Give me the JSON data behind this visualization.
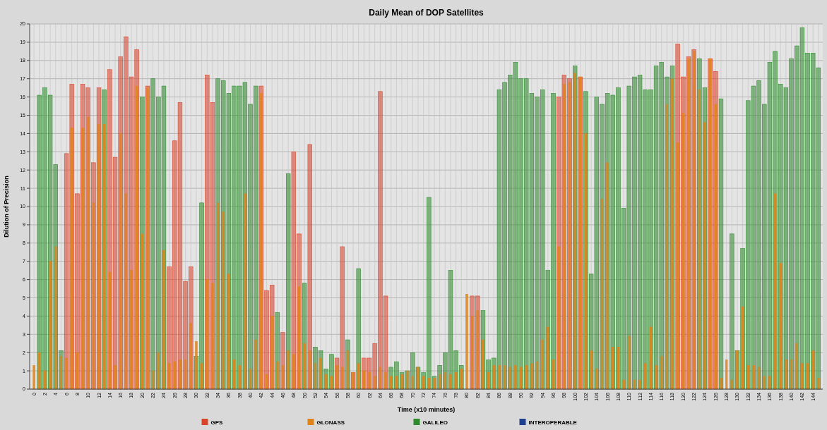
{
  "chart_data": {
    "type": "bar",
    "title": "Daily Mean of DOP Satellites",
    "xlabel": "Time (x10 minutes)",
    "ylabel": "Dilution of Precision",
    "categories": [
      "0",
      null,
      "2",
      null,
      "4",
      null,
      "6",
      null,
      "8",
      null,
      "10",
      null,
      "12",
      null,
      "14",
      null,
      "16",
      null,
      "18",
      null,
      "20",
      null,
      "22",
      null,
      "24",
      null,
      "26",
      null,
      "28",
      null,
      "30",
      null,
      "32",
      null,
      "34",
      null,
      "36",
      null,
      "38",
      null,
      "40",
      null,
      "42",
      null,
      "44",
      null,
      "46",
      null,
      "48",
      null,
      "50",
      null,
      "52",
      null,
      "54",
      null,
      "56",
      null,
      "58",
      null,
      "60",
      null,
      "62",
      null,
      "64",
      null,
      "66",
      null,
      "68",
      null,
      "70",
      null,
      "72",
      null,
      "74",
      null,
      "76",
      null,
      "78",
      null,
      "80",
      null,
      "82",
      null,
      "84",
      null,
      "86",
      null,
      "88",
      null,
      "90",
      null,
      "92",
      null,
      "94",
      null,
      "96",
      null,
      "98",
      null,
      "100",
      null,
      "102",
      null,
      "104",
      null,
      "106",
      null,
      "108",
      null,
      "110",
      null,
      "112",
      null,
      "114",
      null,
      "116",
      null,
      "118",
      null,
      "120",
      null,
      "122",
      null,
      "124",
      null,
      "126",
      null,
      "128",
      null,
      "130",
      null,
      "132",
      null,
      "134",
      null,
      "136",
      null,
      "138",
      null,
      "140",
      null,
      "142",
      null,
      "144",
      null
    ],
    "series": [
      {
        "name": "GPS",
        "color": "#d9442b",
        "values": [
          null,
          null,
          null,
          null,
          null,
          null,
          12.9,
          16.7,
          10.7,
          16.7,
          16.5,
          12.4,
          16.5,
          null,
          17.5,
          12.7,
          18.2,
          19.3,
          17.1,
          18.6,
          null,
          16.6,
          null,
          null,
          null,
          6.7,
          13.6,
          15.7,
          5.9,
          6.7,
          null,
          null,
          17.2,
          15.7,
          null,
          null,
          null,
          null,
          null,
          null,
          null,
          null,
          16.6,
          5.4,
          5.7,
          null,
          3.1,
          null,
          13.0,
          8.5,
          null,
          13.4,
          null,
          null,
          null,
          null,
          1.7,
          7.8,
          null,
          0.9,
          null,
          1.7,
          1.7,
          2.5,
          16.3,
          5.1,
          null,
          null,
          null,
          null,
          null,
          null,
          null,
          null,
          null,
          null,
          null,
          null,
          null,
          null,
          null,
          5.1,
          5.1,
          null,
          null,
          null,
          null,
          null,
          null,
          null,
          null,
          null,
          null,
          null,
          null,
          null,
          null,
          16.0,
          17.2,
          17.0,
          null,
          17.1,
          null,
          null,
          null,
          null,
          null,
          null,
          null,
          null,
          null,
          null,
          null,
          null,
          null,
          null,
          null,
          null,
          null,
          18.9,
          17.1,
          18.2,
          18.6,
          null,
          null,
          18.1,
          17.4,
          null,
          null,
          null,
          null,
          null,
          null,
          null,
          null,
          null,
          null,
          null,
          null,
          null,
          null,
          null,
          null,
          null,
          null,
          null
        ]
      },
      {
        "name": "GLONASS",
        "color": "#e0841a",
        "values": [
          1.3,
          2.0,
          1.0,
          7.0,
          7.8,
          1.8,
          1.7,
          14.3,
          2.0,
          14.3,
          14.9,
          10.2,
          14.5,
          14.5,
          6.4,
          1.3,
          14.0,
          10.7,
          6.5,
          16.6,
          8.5,
          16.5,
          1.0,
          2.0,
          7.6,
          1.4,
          1.5,
          1.6,
          1.6,
          3.6,
          2.6,
          1.4,
          6.0,
          5.8,
          10.2,
          9.7,
          6.3,
          1.6,
          1.3,
          10.7,
          1.1,
          2.7,
          16.2,
          0.8,
          4.0,
          1.5,
          1.3,
          2.1,
          1.9,
          5.6,
          2.5,
          2.1,
          1.4,
          1.7,
          0.8,
          0.7,
          1.3,
          1.2,
          2.1,
          0.9,
          1.4,
          1.0,
          0.9,
          0.7,
          1.2,
          0.9,
          0.7,
          0.7,
          0.8,
          1.0,
          0.7,
          1.2,
          0.7,
          0.6,
          0.6,
          0.8,
          0.9,
          0.8,
          0.9,
          1.1,
          5.2,
          4.0,
          4.3,
          2.7,
          0.9,
          1.3,
          1.3,
          1.3,
          1.2,
          1.3,
          1.2,
          1.3,
          1.4,
          1.5,
          2.7,
          3.4,
          1.6,
          7.8,
          16.7,
          16.8,
          17.3,
          17.1,
          14.0,
          2.1,
          1.1,
          10.4,
          12.4,
          2.3,
          2.3,
          0.5,
          2.9,
          0.5,
          0.5,
          1.4,
          3.4,
          1.3,
          1.8,
          15.6,
          17.0,
          13.5,
          15.1,
          18.1,
          18.5,
          16.4,
          14.6,
          18.1,
          15.6,
          0.6,
          1.6,
          0.5,
          2.1,
          4.5,
          1.3,
          1.3,
          1.2,
          0.7,
          0.7,
          10.7,
          6.9,
          1.6,
          1.6,
          2.5,
          1.4,
          1.4,
          2.1,
          0.6
        ]
      },
      {
        "name": "GALILEO",
        "color": "#2e8b2e",
        "values": [
          null,
          16.1,
          16.5,
          16.1,
          12.3,
          2.1,
          null,
          null,
          null,
          null,
          null,
          null,
          null,
          16.4,
          null,
          null,
          null,
          null,
          null,
          null,
          16.0,
          null,
          17.0,
          16.0,
          16.6,
          null,
          null,
          null,
          null,
          null,
          1.8,
          10.2,
          null,
          null,
          17.0,
          16.9,
          16.2,
          16.6,
          16.6,
          16.8,
          15.6,
          16.6,
          null,
          null,
          null,
          4.2,
          null,
          11.8,
          null,
          null,
          5.8,
          null,
          2.3,
          2.1,
          1.1,
          1.9,
          null,
          null,
          2.7,
          null,
          6.6,
          null,
          null,
          null,
          null,
          null,
          1.2,
          1.5,
          0.9,
          1.0,
          2.0,
          1.2,
          0.9,
          10.5,
          0.7,
          1.3,
          2.0,
          6.5,
          2.1,
          1.3,
          null,
          null,
          null,
          4.3,
          1.6,
          1.7,
          16.4,
          16.8,
          17.2,
          17.9,
          17.0,
          17.0,
          16.2,
          16.0,
          16.4,
          6.5,
          16.2,
          null,
          null,
          null,
          17.7,
          null,
          16.3,
          6.3,
          16.0,
          15.6,
          16.2,
          16.1,
          16.5,
          9.9,
          16.6,
          17.1,
          17.2,
          16.4,
          16.4,
          17.7,
          17.9,
          17.1,
          17.7,
          null,
          null,
          null,
          null,
          18.1,
          16.5,
          null,
          null,
          15.9,
          null,
          8.5,
          2.1,
          7.7,
          15.8,
          16.6,
          16.9,
          15.6,
          17.9,
          18.5,
          16.7,
          16.5,
          18.1,
          18.8,
          19.8,
          18.4,
          18.4,
          17.6
        ]
      },
      {
        "name": "INTEROPERABLE",
        "color": "#1f3f8f",
        "values": [
          null,
          null,
          null,
          null,
          null,
          null,
          null,
          null,
          null,
          null,
          null,
          null,
          null,
          null,
          null,
          null,
          null,
          null,
          null,
          null,
          null,
          null,
          null,
          null,
          null,
          null,
          null,
          null,
          null,
          null,
          null,
          null,
          null,
          null,
          null,
          null,
          null,
          null,
          null,
          null,
          null,
          null,
          null,
          null,
          null,
          null,
          null,
          null,
          null,
          null,
          null,
          null,
          null,
          null,
          null,
          null,
          null,
          null,
          null,
          null,
          null,
          null,
          null,
          null,
          null,
          null,
          null,
          null,
          null,
          null,
          null,
          null,
          null,
          null,
          null,
          null,
          null,
          null,
          null,
          null,
          null,
          null,
          null,
          null,
          null,
          null,
          null,
          null,
          null,
          null,
          null,
          null,
          null,
          null,
          null,
          null,
          null,
          null,
          null,
          null,
          null,
          null,
          null,
          null,
          null,
          null,
          null,
          null,
          null,
          null,
          null,
          null,
          null,
          null,
          null,
          null,
          null,
          null,
          null,
          null,
          null,
          null,
          null,
          null,
          null,
          null,
          null,
          null,
          null,
          null,
          null,
          null,
          null,
          null,
          null,
          null,
          null,
          null,
          null,
          null,
          null,
          null,
          null,
          null,
          null,
          null
        ]
      }
    ],
    "ylim": [
      0,
      20
    ],
    "yticks": [
      0,
      1,
      2,
      3,
      4,
      5,
      6,
      7,
      8,
      9,
      10,
      11,
      12,
      13,
      14,
      15,
      16,
      17,
      18,
      19,
      20
    ],
    "grid": true,
    "legend": "bottom"
  }
}
